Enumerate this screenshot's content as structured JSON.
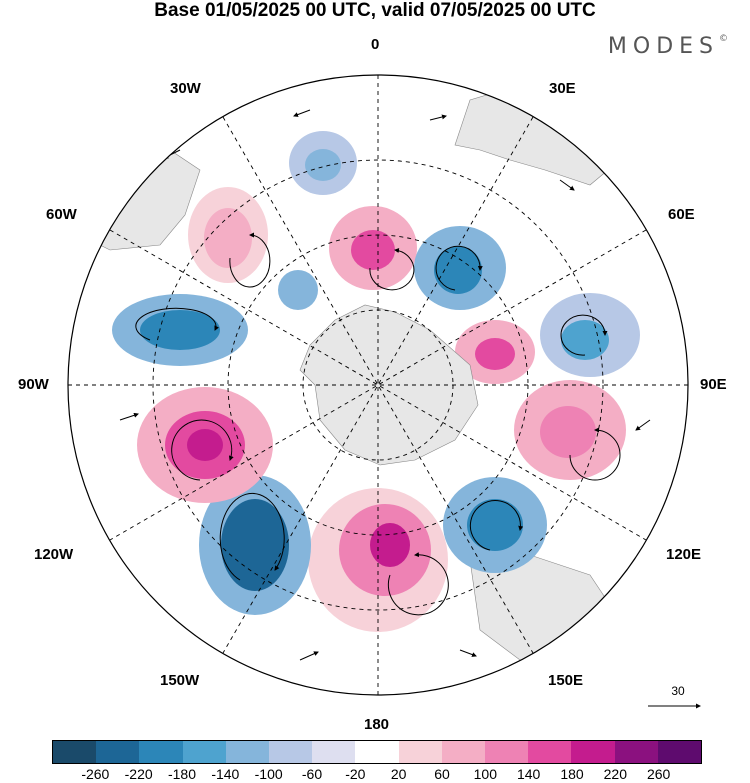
{
  "title": "Base 01/05/2025 00 UTC, valid 07/05/2025 00 UTC",
  "brand": "MODES",
  "brand_mark": "©",
  "longitude_labels": {
    "top": "0",
    "e30": "30E",
    "w30": "30W",
    "e60": "60E",
    "w60": "60W",
    "e90": "90E",
    "w90": "90W",
    "e120": "120E",
    "w120": "120W",
    "e150": "150E",
    "w150": "150W",
    "bottom": "180"
  },
  "reference_vector": "30",
  "colorbar": {
    "labels": [
      "-260",
      "-220",
      "-180",
      "-140",
      "-100",
      "-60",
      "-20",
      "20",
      "60",
      "100",
      "140",
      "180",
      "220",
      "260"
    ],
    "colors": [
      "#1a4a6a",
      "#1d6696",
      "#2c86b8",
      "#4ea3cf",
      "#85b5db",
      "#b7c8e6",
      "#dedff0",
      "#ffffff",
      "#f7d2d9",
      "#f4aec5",
      "#ee82b4",
      "#e34aa0",
      "#c41c8e",
      "#8b117f",
      "#5e0b6e"
    ]
  }
}
